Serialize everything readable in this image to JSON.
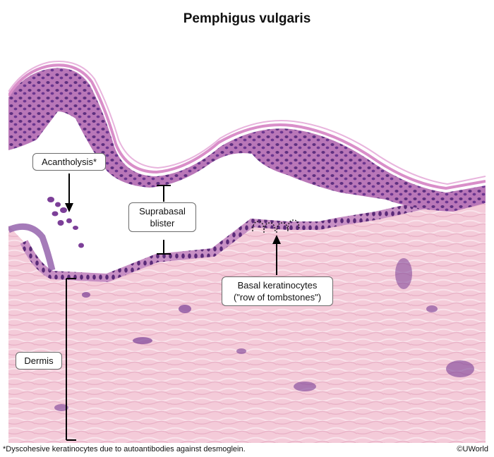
{
  "title": "Pemphigus vulgaris",
  "labels": {
    "acantholysis": "Acantholysis*",
    "suprabasal_line1": "Suprabasal",
    "suprabasal_line2": "blister",
    "basal_line1": "Basal keratinocytes",
    "basal_line2": "(\"row of tombstones\")",
    "dermis": "Dermis"
  },
  "footnote": "*Dyscohesive keratinocytes due to autoantibodies against desmoglein.",
  "copyright": "©UWorld",
  "colors": {
    "dermis_pink": "#f3c9d8",
    "epidermis_purple": "#b46fb4",
    "nuclei": "#5e2f80",
    "stratum_corneum": "#d98ec9"
  }
}
